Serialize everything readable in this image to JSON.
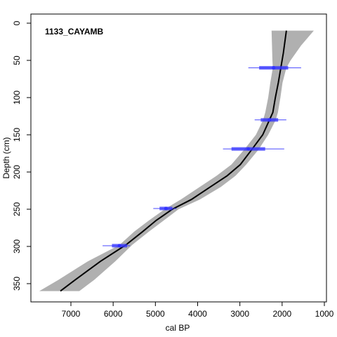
{
  "chart_data": {
    "type": "line",
    "title": "1133_CAYAMB",
    "xlabel": "cal BP",
    "ylabel": "Depth (cm)",
    "x_reversed": true,
    "y_reversed": true,
    "xlim": [
      7700,
      1000
    ],
    "ylim": [
      0,
      365
    ],
    "x_ticks": [
      7000,
      6000,
      5000,
      4000,
      3000,
      2000,
      1000
    ],
    "y_ticks": [
      0,
      50,
      100,
      150,
      200,
      250,
      300,
      350
    ],
    "series": [
      {
        "role": "age-depth model median",
        "color": "#000000",
        "points": [
          {
            "x": 1900,
            "y": 10
          },
          {
            "x": 1970,
            "y": 40
          },
          {
            "x": 2030,
            "y": 60
          },
          {
            "x": 2090,
            "y": 80
          },
          {
            "x": 2160,
            "y": 100
          },
          {
            "x": 2220,
            "y": 120
          },
          {
            "x": 2300,
            "y": 130
          },
          {
            "x": 2460,
            "y": 150
          },
          {
            "x": 2720,
            "y": 170
          },
          {
            "x": 2990,
            "y": 190
          },
          {
            "x": 3300,
            "y": 205
          },
          {
            "x": 3700,
            "y": 220
          },
          {
            "x": 4150,
            "y": 237
          },
          {
            "x": 4600,
            "y": 250
          },
          {
            "x": 4980,
            "y": 265
          },
          {
            "x": 5300,
            "y": 280
          },
          {
            "x": 5700,
            "y": 298
          },
          {
            "x": 6300,
            "y": 320
          },
          {
            "x": 6900,
            "y": 345
          },
          {
            "x": 7250,
            "y": 360
          }
        ]
      }
    ],
    "uncertainty_band": {
      "color": "#b0b0b0",
      "points": [
        {
          "y": 10,
          "older": 2250,
          "younger": 1250
        },
        {
          "y": 30,
          "older": 2240,
          "younger": 1550
        },
        {
          "y": 50,
          "older": 2230,
          "younger": 1800
        },
        {
          "y": 60,
          "older": 2220,
          "younger": 1900
        },
        {
          "y": 80,
          "older": 2280,
          "younger": 1990
        },
        {
          "y": 100,
          "older": 2330,
          "younger": 2040
        },
        {
          "y": 120,
          "older": 2400,
          "younger": 2100
        },
        {
          "y": 130,
          "older": 2450,
          "younger": 2150
        },
        {
          "y": 150,
          "older": 2620,
          "younger": 2330
        },
        {
          "y": 170,
          "older": 2900,
          "younger": 2560
        },
        {
          "y": 190,
          "older": 3200,
          "younger": 2850
        },
        {
          "y": 205,
          "older": 3550,
          "younger": 3100
        },
        {
          "y": 220,
          "older": 3950,
          "younger": 3450
        },
        {
          "y": 237,
          "older": 4400,
          "younger": 3950
        },
        {
          "y": 250,
          "older": 4780,
          "younger": 4450
        },
        {
          "y": 265,
          "older": 5150,
          "younger": 4800
        },
        {
          "y": 280,
          "older": 5500,
          "younger": 5150
        },
        {
          "y": 298,
          "older": 5850,
          "younger": 5550
        },
        {
          "y": 320,
          "older": 6600,
          "younger": 5950
        },
        {
          "y": 345,
          "older": 7300,
          "younger": 6450
        },
        {
          "y": 360,
          "older": 7750,
          "younger": 6800
        }
      ]
    },
    "dates": {
      "color": "#3333ff",
      "items": [
        {
          "depth": 60,
          "mode": 2200,
          "range_old": 2800,
          "range_young": 1550
        },
        {
          "depth": 130,
          "mode": 2300,
          "range_old": 2650,
          "range_young": 1900
        },
        {
          "depth": 169,
          "mode": 2800,
          "range_old": 3400,
          "range_young": 1950
        },
        {
          "depth": 249,
          "mode": 4750,
          "range_old": 5050,
          "range_young": 4500
        },
        {
          "depth": 299,
          "mode": 5850,
          "range_old": 6250,
          "range_young": 5600
        }
      ]
    }
  }
}
